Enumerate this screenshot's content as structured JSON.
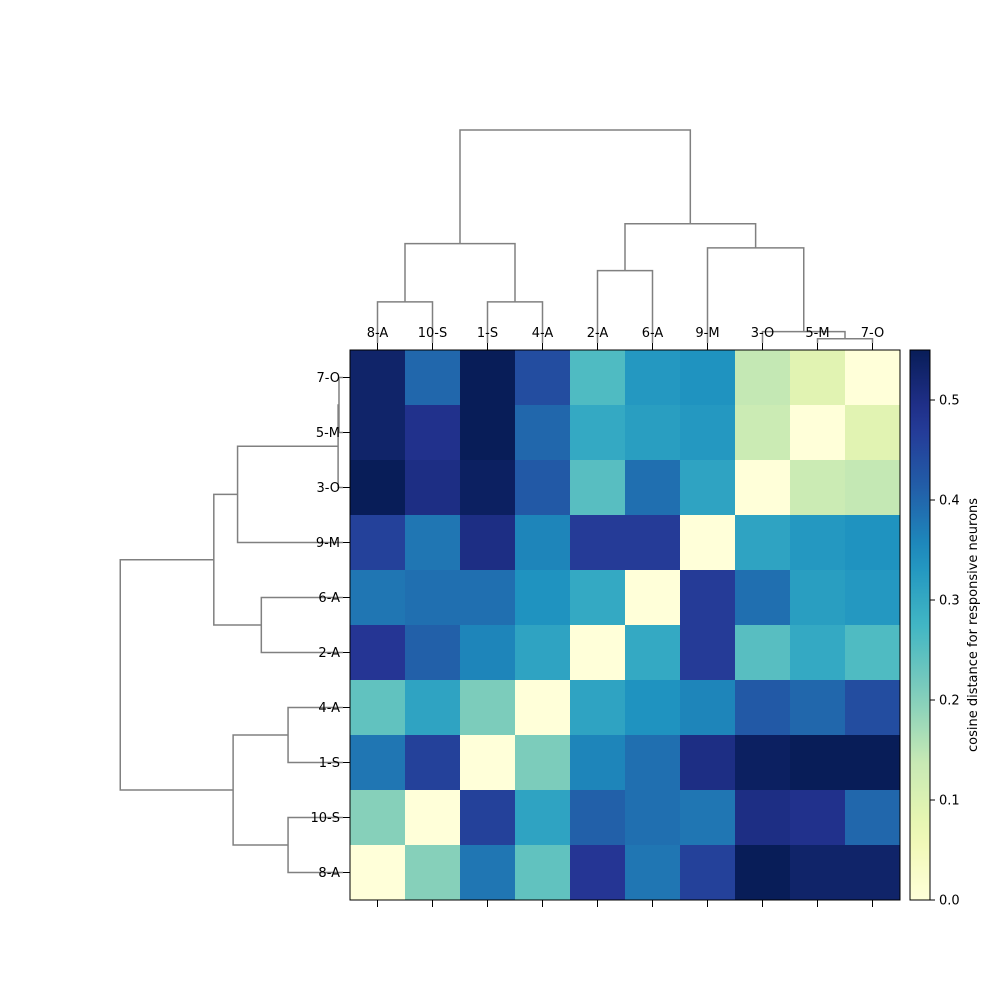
{
  "chart_data": {
    "type": "heatmap",
    "title": "",
    "labels": [
      "8-A",
      "10-S",
      "1-S",
      "4-A",
      "2-A",
      "6-A",
      "9-M",
      "3-O",
      "5-M",
      "7-O"
    ],
    "row_labels_top_to_bottom": [
      "7-O",
      "5-M",
      "3-O",
      "9-M",
      "6-A",
      "2-A",
      "4-A",
      "1-S",
      "10-S",
      "8-A"
    ],
    "column_labels_left_to_right": [
      "8-A",
      "10-S",
      "1-S",
      "4-A",
      "2-A",
      "6-A",
      "9-M",
      "3-O",
      "5-M",
      "7-O"
    ],
    "matrix": [
      [
        0.0,
        0.2,
        0.38,
        0.24,
        0.48,
        0.38,
        0.46,
        0.55,
        0.53,
        0.53
      ],
      [
        0.2,
        0.0,
        0.46,
        0.31,
        0.41,
        0.39,
        0.38,
        0.5,
        0.49,
        0.4
      ],
      [
        0.38,
        0.46,
        0.0,
        0.21,
        0.36,
        0.39,
        0.5,
        0.54,
        0.55,
        0.55
      ],
      [
        0.24,
        0.31,
        0.21,
        0.0,
        0.31,
        0.34,
        0.36,
        0.42,
        0.4,
        0.44
      ],
      [
        0.48,
        0.41,
        0.36,
        0.31,
        0.0,
        0.3,
        0.47,
        0.25,
        0.3,
        0.26
      ],
      [
        0.38,
        0.39,
        0.39,
        0.34,
        0.3,
        0.0,
        0.47,
        0.39,
        0.32,
        0.33
      ],
      [
        0.46,
        0.38,
        0.5,
        0.36,
        0.47,
        0.47,
        0.0,
        0.31,
        0.33,
        0.34
      ],
      [
        0.55,
        0.5,
        0.54,
        0.42,
        0.25,
        0.39,
        0.31,
        0.0,
        0.13,
        0.14
      ],
      [
        0.53,
        0.49,
        0.55,
        0.4,
        0.3,
        0.32,
        0.33,
        0.13,
        0.0,
        0.09
      ],
      [
        0.53,
        0.4,
        0.55,
        0.44,
        0.26,
        0.33,
        0.34,
        0.14,
        0.09,
        0.0
      ]
    ],
    "colorbar": {
      "label": "cosine distance for responsive neurons",
      "min": 0.0,
      "max": 0.55,
      "ticks": [
        0.0,
        0.1,
        0.2,
        0.3,
        0.4,
        0.5
      ],
      "tick_labels": [
        "0.0",
        "0.1",
        "0.2",
        "0.3",
        "0.4",
        "0.5"
      ],
      "colormap": "YlGnBu"
    },
    "dendrogram": {
      "color": "#808080",
      "merges": [
        {
          "a": "5-M",
          "b": "7-O",
          "height": 0.1
        },
        {
          "a": "8-A",
          "b": "10-S",
          "height": 0.2
        },
        {
          "a": "1-S",
          "b": "4-A",
          "height": 0.2
        },
        {
          "a": "3-O",
          "b": "5-M+7-O",
          "height": 0.13
        },
        {
          "a": "2-A",
          "b": "6-A",
          "height": 0.3
        },
        {
          "a": "9-M",
          "b": "3-O+5-M+7-O",
          "height": 0.41
        },
        {
          "a": "8-A+10-S",
          "b": "1-S+4-A",
          "height": 0.55
        },
        {
          "a": "2-A+6-A",
          "b": "9-M+3-O+5-M+7-O",
          "height": 0.5
        },
        {
          "a": "all-left",
          "b": "all-right",
          "height": 0.75
        }
      ]
    },
    "grid": false
  }
}
